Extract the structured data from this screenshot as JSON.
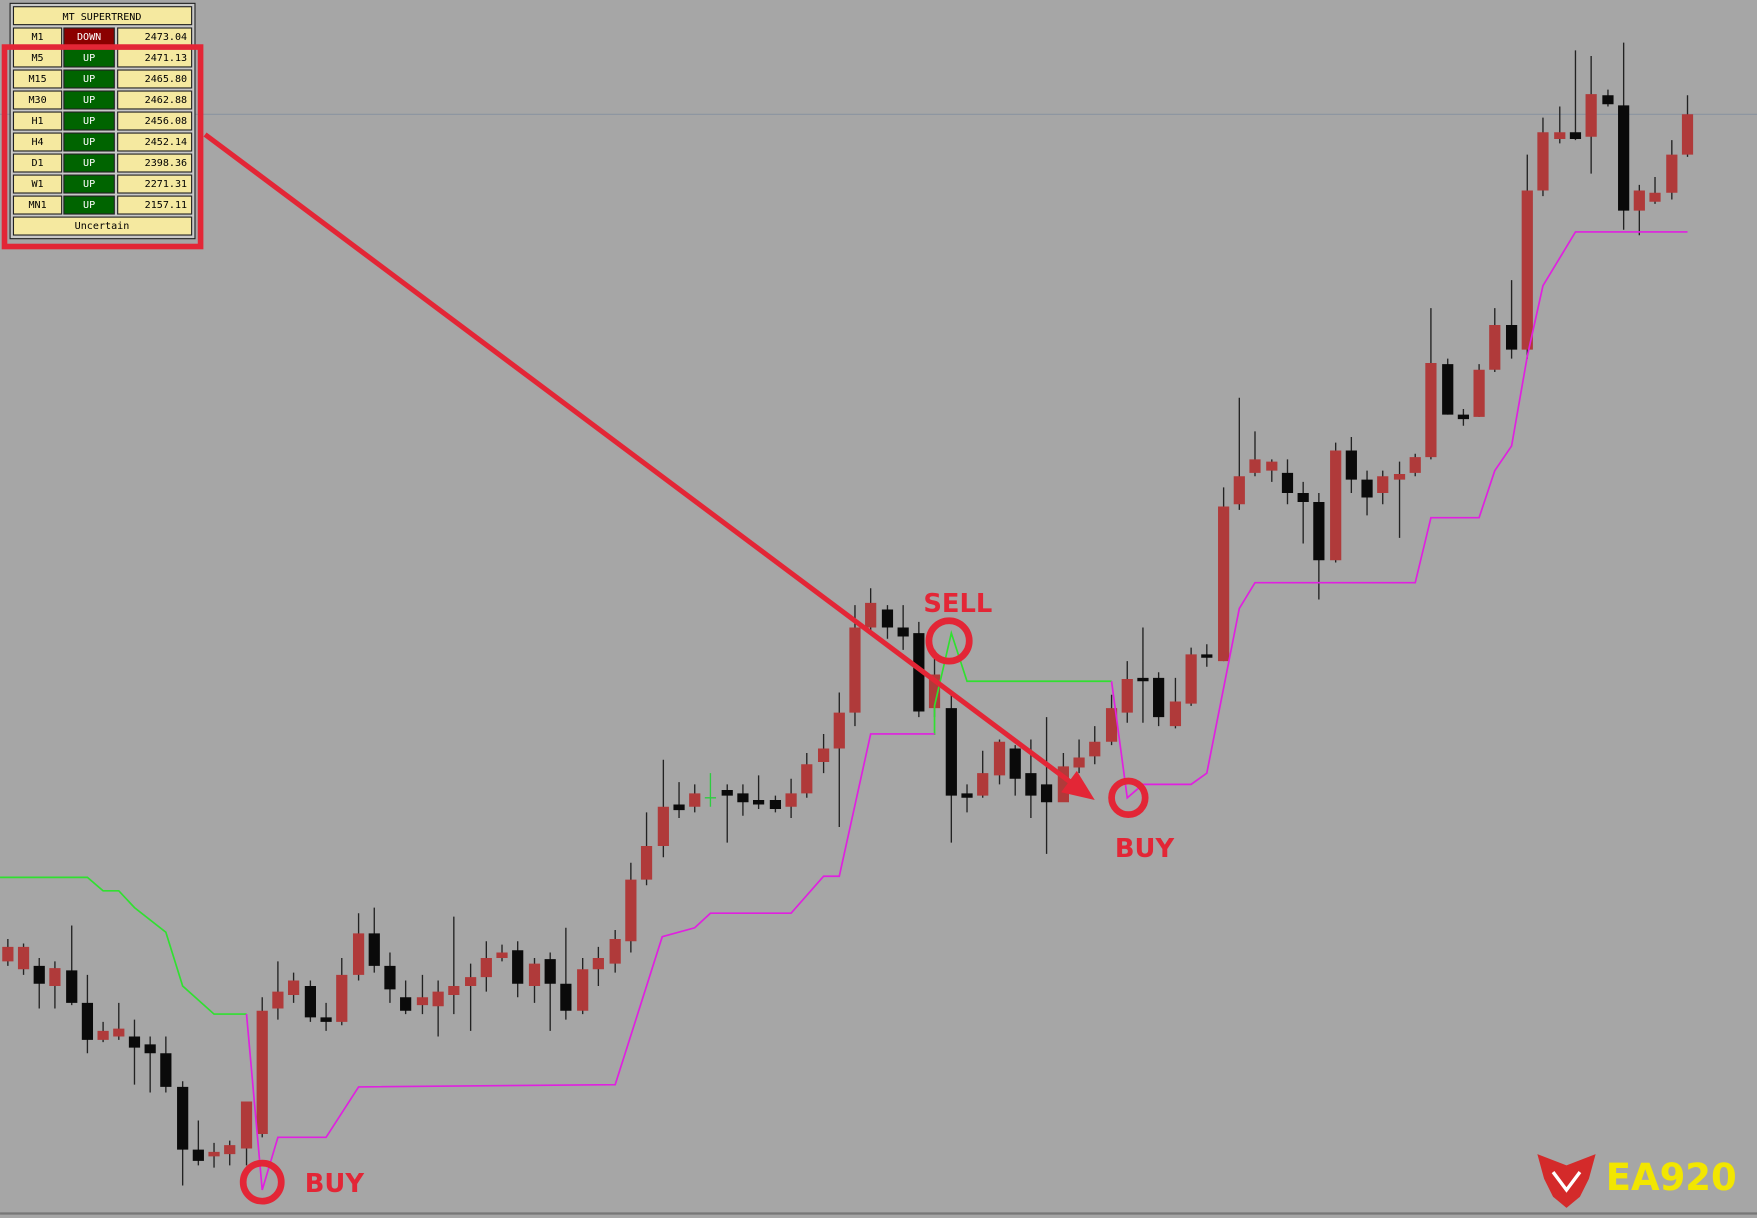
{
  "panel": {
    "title": "MT SUPERTREND",
    "rows": [
      {
        "timeframe": "M1",
        "direction": "DOWN",
        "color": "#8b0000",
        "value": "2473.04"
      },
      {
        "timeframe": "M5",
        "direction": "UP",
        "color": "#006400",
        "value": "2471.13"
      },
      {
        "timeframe": "M15",
        "direction": "UP",
        "color": "#006400",
        "value": "2465.80"
      },
      {
        "timeframe": "M30",
        "direction": "UP",
        "color": "#006400",
        "value": "2462.88"
      },
      {
        "timeframe": "H1",
        "direction": "UP",
        "color": "#006400",
        "value": "2456.08"
      },
      {
        "timeframe": "H4",
        "direction": "UP",
        "color": "#006400",
        "value": "2452.14"
      },
      {
        "timeframe": "D1",
        "direction": "UP",
        "color": "#006400",
        "value": "2398.36"
      },
      {
        "timeframe": "W1",
        "direction": "UP",
        "color": "#006400",
        "value": "2271.31"
      },
      {
        "timeframe": "MN1",
        "direction": "UP",
        "color": "#006400",
        "value": "2157.11"
      }
    ],
    "status": "Uncertain"
  },
  "signals": [
    "BUY",
    "SELL",
    "BUY"
  ],
  "logo": "EA920"
}
